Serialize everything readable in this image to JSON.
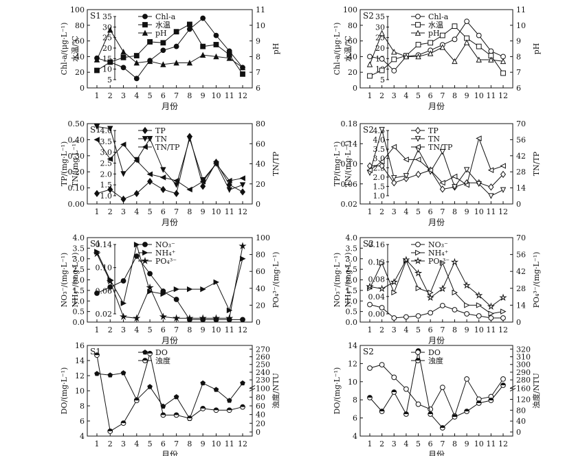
{
  "chart_data": [
    {
      "type": "line",
      "panel_label": "S1",
      "xlabel": "月份",
      "ylabel_left": "Chl-a/(μg·L⁻¹)",
      "ylabel_left2": "水温/℃",
      "ylabel_right": "pH",
      "categories": [
        1,
        2,
        3,
        4,
        5,
        6,
        7,
        8,
        9,
        10,
        11,
        12
      ],
      "left_ticks": [
        "0",
        "20",
        "40",
        "60",
        "80",
        "100"
      ],
      "left2_ticks": [
        "5",
        "10",
        "15",
        "20",
        "25",
        "30",
        "35"
      ],
      "right_ticks": [
        "6",
        "7",
        "8",
        "9",
        "10",
        "11"
      ],
      "series": [
        {
          "name": "Chl-a",
          "axis": "left",
          "marker": "circle-filled",
          "values": [
            38,
            33,
            26,
            12,
            35,
            48,
            53,
            75,
            89,
            67,
            47,
            26
          ]
        },
        {
          "name": "水温",
          "axis": "left2",
          "marker": "square-filled",
          "values": [
            7,
            11.5,
            14,
            15,
            22.5,
            22,
            28,
            32,
            20,
            21,
            15.5,
            5
          ]
        },
        {
          "name": "pH",
          "axis": "right",
          "marker": "triangle-filled",
          "values": [
            7.8,
            9.7,
            8.3,
            7.6,
            7.7,
            7.5,
            7.6,
            7.6,
            8.1,
            8.0,
            7.9,
            7.3
          ]
        }
      ]
    },
    {
      "type": "line",
      "panel_label": "S2",
      "xlabel": "月份",
      "ylabel_left": "Chl-a/(μg·L⁻¹)",
      "ylabel_left2": "水温/℃",
      "ylabel_right": "pH",
      "categories": [
        1,
        2,
        3,
        4,
        5,
        6,
        7,
        8,
        9,
        10,
        11,
        12
      ],
      "left_ticks": [
        "0",
        "20",
        "40",
        "60",
        "80",
        "100"
      ],
      "left2_ticks": [
        "5",
        "10",
        "15",
        "20",
        "25",
        "30",
        "35"
      ],
      "right_ticks": [
        "6",
        "7",
        "8",
        "9",
        "10",
        "11"
      ],
      "series": [
        {
          "name": "Chl-a",
          "axis": "left",
          "marker": "circle-open",
          "values": [
            40,
            37,
            22,
            40,
            42,
            48,
            55,
            62,
            85,
            67,
            47,
            40
          ]
        },
        {
          "name": "水温",
          "axis": "left2",
          "marker": "square-open",
          "values": [
            4,
            7,
            13,
            15,
            21,
            22,
            26,
            31,
            24.5,
            20,
            15,
            5.5
          ]
        },
        {
          "name": "pH",
          "axis": "right",
          "marker": "triangle-open",
          "values": [
            7.5,
            9.5,
            8.3,
            8.0,
            8.0,
            8.2,
            8.6,
            7.7,
            8.9,
            7.8,
            7.8,
            7.7
          ]
        }
      ]
    },
    {
      "type": "line",
      "panel_label": "S1",
      "xlabel": "月份",
      "ylabel_left": "TP/(mg·L⁻¹)",
      "ylabel_left2": "TN/(mg·L⁻¹)",
      "ylabel_right": "TN/TP",
      "categories": [
        1,
        2,
        3,
        4,
        5,
        6,
        7,
        8,
        9,
        10,
        11,
        12
      ],
      "left_ticks": [
        "0.00",
        "0.10",
        "0.20",
        "0.30",
        "0.40",
        "0.50"
      ],
      "left2_ticks": [
        "1.0",
        "1.5",
        "2.0",
        "2.5",
        "3.0",
        "3.5",
        "4.0"
      ],
      "right_ticks": [
        "0",
        "20",
        "40",
        "60",
        "80"
      ],
      "series": [
        {
          "name": "TP",
          "axis": "left",
          "marker": "diamond-filled",
          "values": [
            0.065,
            0.09,
            0.03,
            0.065,
            0.14,
            0.09,
            0.065,
            0.42,
            0.11,
            0.26,
            0.12,
            0.075
          ]
        },
        {
          "name": "TN",
          "axis": "left2",
          "marker": "triangle-down-filled",
          "values": [
            4.45,
            4.35,
            2.1,
            2.8,
            3.85,
            2.3,
            1.55,
            3.85,
            1.8,
            2.6,
            1.3,
            1.55
          ]
        },
        {
          "name": "TN/TP",
          "axis": "right",
          "marker": "triangle-left-filled",
          "values": [
            70,
            46,
            64,
            44,
            27,
            23,
            19,
            8,
            18,
            40,
            19,
            22
          ]
        }
      ]
    },
    {
      "type": "line",
      "panel_label": "S2",
      "xlabel": "月份",
      "ylabel_left": "TP/(mg·L⁻¹)",
      "ylabel_left2": "TN/(mg·L⁻¹)",
      "ylabel_right": "TN/TP",
      "categories": [
        1,
        2,
        3,
        4,
        5,
        6,
        7,
        8,
        9,
        10,
        11,
        12
      ],
      "left_ticks": [
        "0.02",
        "0.06",
        "0.10",
        "0.14",
        "0.18"
      ],
      "left2_ticks": [
        "1.0",
        "1.5",
        "2.0",
        "2.5",
        "3.0",
        "3.5",
        "4.0",
        "4.5"
      ],
      "right_ticks": [
        "0",
        "14",
        "28",
        "42",
        "56",
        "70"
      ],
      "series": [
        {
          "name": "TP",
          "axis": "left",
          "marker": "diamond-open",
          "values": [
            0.09,
            0.09,
            0.05,
            0.06,
            0.07,
            0.08,
            0.035,
            0.04,
            0.05,
            0.05,
            0.04,
            0.07
          ]
        },
        {
          "name": "TN",
          "axis": "left2",
          "marker": "triangle-down-open",
          "values": [
            2.35,
            4.5,
            2.1,
            2.2,
            3.5,
            2.4,
            3.4,
            1.65,
            2.5,
            1.8,
            1.2,
            1.5
          ]
        },
        {
          "name": "TN/TP",
          "axis": "right",
          "marker": "triangle-left-open",
          "values": [
            28,
            36,
            50,
            38,
            38,
            28,
            16,
            22,
            14,
            58,
            28,
            32
          ]
        }
      ]
    },
    {
      "type": "line",
      "panel_label": "S1",
      "xlabel": "月份",
      "ylabel_left": "NO₃⁻/(mg·L⁻¹)",
      "ylabel_left2": "NH₄⁺/(mg·L⁻¹)",
      "ylabel_right": "PO₄³⁻/(mg·L⁻¹)",
      "categories": [
        1,
        2,
        3,
        4,
        5,
        6,
        7,
        8,
        9,
        10,
        11,
        12
      ],
      "left_ticks": [
        "0.0",
        "0.5",
        "1.0",
        "1.5",
        "2.0",
        "2.5",
        "3.0",
        "3.5",
        "4.0"
      ],
      "left2_ticks": [
        "0.02",
        "0.06",
        "0.10",
        "0.14"
      ],
      "right_ticks": [
        "0",
        "20",
        "40",
        "60",
        "80",
        "100"
      ],
      "series": [
        {
          "name": "NO₃⁻",
          "axis": "left",
          "marker": "circle-filled",
          "values": [
            1.3,
            1.6,
            1.9,
            3.1,
            2.25,
            1.4,
            1.0,
            0.02,
            0.02,
            0.02,
            0.02,
            0.02
          ]
        },
        {
          "name": "NH₄⁺",
          "axis": "left2",
          "marker": "triangle-right-filled",
          "values": [
            0.14,
            0.08,
            0.03,
            0.155,
            0.055,
            0.05,
            0.06,
            0.06,
            0.06,
            0.075,
            0.015,
            0.125
          ]
        },
        {
          "name": "PO₄³⁻",
          "axis": "right",
          "marker": "star-filled",
          "values": [
            84,
            48,
            2,
            0,
            40,
            2,
            0,
            0,
            0,
            0,
            0,
            94
          ]
        }
      ]
    },
    {
      "type": "line",
      "panel_label": "S2",
      "xlabel": "月份",
      "ylabel_left": "NO₃⁻/(mg·L⁻¹)",
      "ylabel_left2": "NH₄⁺/(mg·L⁻¹)",
      "ylabel_right": "PO₄³⁻/(mg·L⁻¹)",
      "categories": [
        1,
        2,
        3,
        4,
        5,
        6,
        7,
        8,
        9,
        10,
        11,
        12
      ],
      "left_ticks": [
        "0.0",
        "0.5",
        "1.0",
        "1.5",
        "2.0",
        "2.5",
        "3.0",
        "3.5",
        "4.0"
      ],
      "left2_ticks": [
        "0.00",
        "0.04",
        "0.08",
        "0.12",
        "0.16"
      ],
      "right_ticks": [
        "0",
        "14",
        "28",
        "42",
        "56",
        "70"
      ],
      "series": [
        {
          "name": "NO₃⁻",
          "axis": "left",
          "marker": "circle-open",
          "values": [
            0.75,
            0.6,
            0.1,
            0.15,
            0.2,
            0.35,
            0.7,
            0.5,
            0.3,
            0.2,
            0.1,
            0.1
          ]
        },
        {
          "name": "NH₄⁺",
          "axis": "left2",
          "marker": "triangle-right-open",
          "values": [
            0.06,
            0.12,
            0.05,
            0.125,
            0.06,
            0.05,
            0.12,
            0.05,
            0.02,
            0.02,
            0.0,
            0.005
          ]
        },
        {
          "name": "PO₄³⁻",
          "axis": "right",
          "marker": "star-open",
          "values": [
            28,
            26,
            32,
            52,
            40,
            18,
            26,
            50,
            29,
            20,
            10,
            18
          ]
        }
      ]
    },
    {
      "type": "line",
      "panel_label": "S1",
      "xlabel": "月份",
      "ylabel_left": "DO/(mg·L⁻¹)",
      "ylabel_right": "浊度/NTU",
      "categories": [
        1,
        2,
        3,
        4,
        5,
        6,
        7,
        8,
        9,
        10,
        11,
        12
      ],
      "left_ticks": [
        "4",
        "6",
        "8",
        "10",
        "12",
        "14",
        "16"
      ],
      "right_ticks_low": [
        "0",
        "20",
        "40",
        "60",
        "80",
        "100"
      ],
      "right_ticks_high": [
        "230",
        "240",
        "250",
        "260",
        "270"
      ],
      "series": [
        {
          "name": "DO",
          "axis": "left",
          "marker": "pentagon-filled",
          "values": [
            12.6,
            12.4,
            12.7,
            9.0,
            10.8,
            8.1,
            9.4,
            6.4,
            11.3,
            10.4,
            8.9,
            11.3
          ]
        },
        {
          "name": "浊度",
          "axis": "right",
          "marker": "half-circle",
          "values": [
            240,
            5,
            30,
            100,
            245,
            55,
            55,
            45,
            75,
            70,
            70,
            80
          ]
        }
      ]
    },
    {
      "type": "line",
      "panel_label": "S2",
      "xlabel": "月份",
      "ylabel_left": "DO/(mg·L⁻¹)",
      "ylabel_right": "浊度/NTU",
      "categories": [
        1,
        2,
        3,
        4,
        5,
        6,
        7,
        8,
        9,
        10,
        11,
        12
      ],
      "left_ticks": [
        "4",
        "6",
        "8",
        "10",
        "12",
        "14"
      ],
      "right_ticks_low": [
        "0",
        "40",
        "80",
        "120",
        "160"
      ],
      "right_ticks_high": [
        "280",
        "290",
        "300",
        "310",
        "320"
      ],
      "series": [
        {
          "name": "DO",
          "axis": "left",
          "marker": "circle-open",
          "values": [
            12.1,
            12.5,
            11.0,
            9.6,
            7.8,
            7.2,
            9.8,
            6.4,
            10.8,
            8.4,
            8.7,
            10.8
          ]
        },
        {
          "name": "浊度",
          "axis": "right",
          "marker": "half-circle",
          "values": [
            130,
            80,
            150,
            70,
            300,
            70,
            20,
            60,
            80,
            110,
            120,
            175
          ]
        }
      ]
    }
  ]
}
